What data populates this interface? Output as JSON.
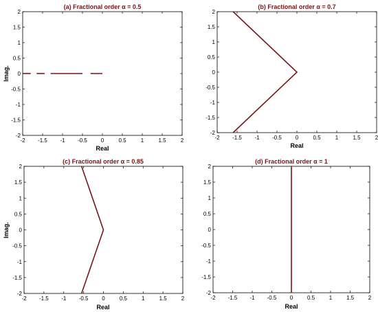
{
  "colors": {
    "series": "#7a1418",
    "axes": "#000000",
    "title": "#7a1418"
  },
  "chart_data": [
    {
      "type": "line",
      "title": "(a) Fractional order α = 0.5",
      "xlabel": "Real",
      "ylabel": "Imag.",
      "xlim": [
        -2,
        2
      ],
      "ylim": [
        -2,
        2
      ],
      "xticks": [
        "-2",
        "-1.5",
        "-1",
        "-0.5",
        "0",
        "0.5",
        "1",
        "1.5",
        "2"
      ],
      "yticks": [
        "-2",
        "-1.5",
        "-1",
        "-0.5",
        "0",
        "0.5",
        "1",
        "1.5",
        "2"
      ],
      "grid": false,
      "series": [
        {
          "segments": [
            [
              [
                -2.0,
                0
              ],
              [
                -1.8,
                0
              ]
            ],
            [
              [
                -1.65,
                0
              ],
              [
                -1.45,
                0
              ]
            ],
            [
              [
                -1.3,
                0
              ],
              [
                -0.5,
                0
              ]
            ],
            [
              [
                -0.3,
                0
              ],
              [
                0.0,
                0
              ]
            ]
          ]
        }
      ]
    },
    {
      "type": "line",
      "title": "(b)  Fractional order α = 0.7",
      "xlabel": "Real",
      "ylabel": "",
      "xlim": [
        -2,
        2
      ],
      "ylim": [
        -2,
        2
      ],
      "xticks": [
        "-2",
        "-1.5",
        "-1",
        "-0.5",
        "0",
        "0.5",
        "1",
        "1.5",
        "2"
      ],
      "yticks": [
        "-2",
        "-1.5",
        "-1",
        "-0.5",
        "0",
        "0.5",
        "1",
        "1.5",
        "2"
      ],
      "grid": false,
      "series": [
        {
          "segments": [
            [
              [
                -1.6,
                2
              ],
              [
                0.0,
                0
              ],
              [
                -1.6,
                -2
              ]
            ]
          ]
        }
      ]
    },
    {
      "type": "line",
      "title": "(c) Fractional order α = 0.85",
      "xlabel": "Real",
      "ylabel": "Imag.",
      "xlim": [
        -2,
        2
      ],
      "ylim": [
        -2,
        2
      ],
      "xticks": [
        "-2",
        "-1.5",
        "-1",
        "-0.5",
        "0",
        "0.5",
        "1",
        "1.5",
        "2"
      ],
      "yticks": [
        "-2",
        "-1.5",
        "-1",
        "-0.5",
        "0",
        "0.5",
        "1",
        "1.5",
        "2"
      ],
      "grid": false,
      "series": [
        {
          "segments": [
            [
              [
                -0.55,
                2
              ],
              [
                0.0,
                0
              ],
              [
                -0.55,
                -2
              ]
            ]
          ]
        }
      ]
    },
    {
      "type": "line",
      "title": "(d)  Fractional order α = 1",
      "xlabel": "Real",
      "ylabel": "",
      "xlim": [
        -2,
        2
      ],
      "ylim": [
        -2,
        2
      ],
      "xticks": [
        "-2",
        "-1.5",
        "-1",
        "-0.5",
        "0",
        "0.5",
        "1",
        "1.5",
        "2"
      ],
      "yticks": [
        "-2",
        "-1.5",
        "-1",
        "-0.5",
        "0",
        "0.5",
        "1",
        "1.5",
        "2"
      ],
      "grid": false,
      "series": [
        {
          "segments": [
            [
              [
                0.0,
                2
              ],
              [
                0.0,
                -2
              ]
            ]
          ]
        }
      ]
    }
  ]
}
